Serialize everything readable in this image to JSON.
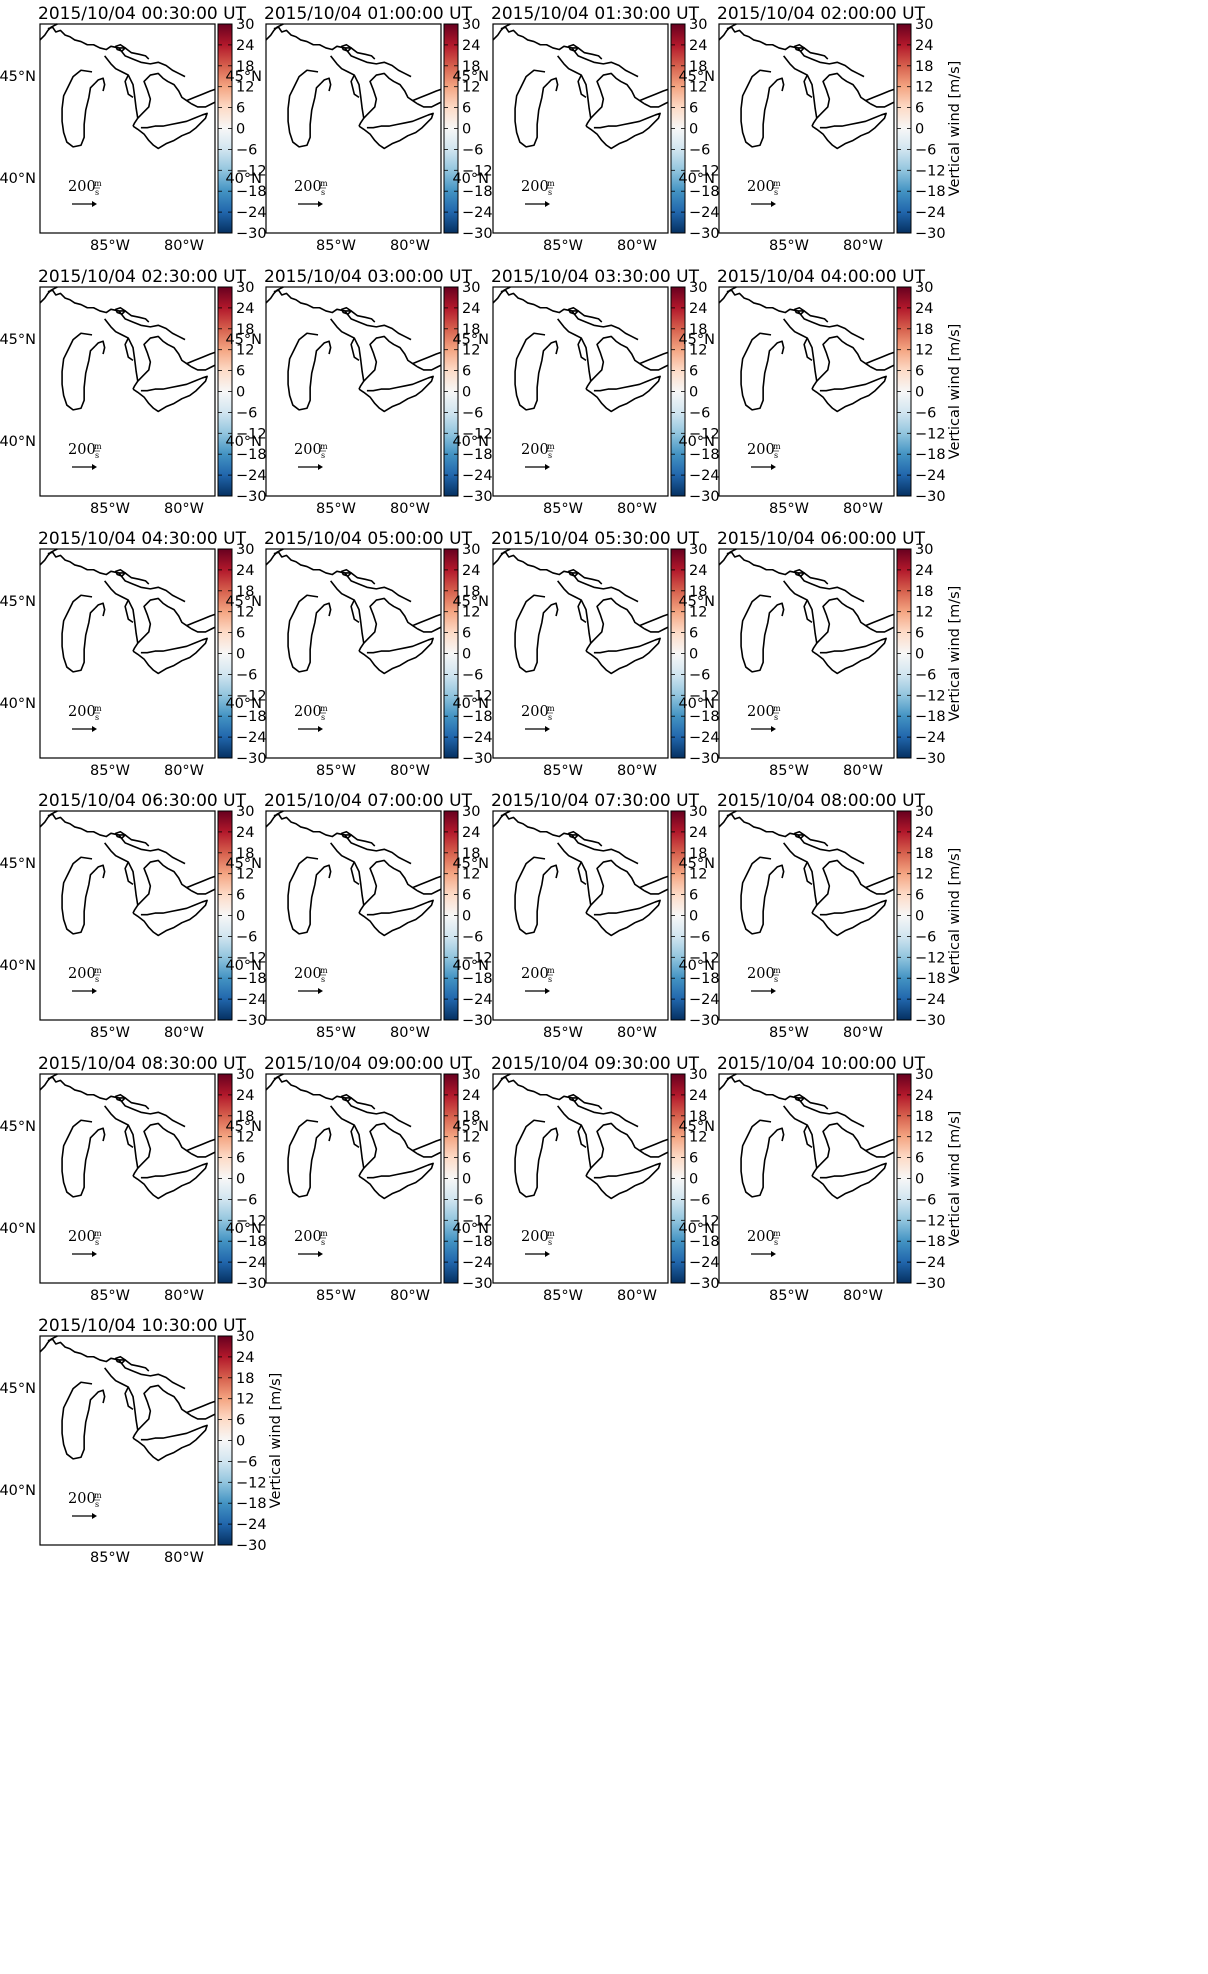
{
  "figure": {
    "panels": [
      {
        "title": "2015/10/04 00:30:00 UT"
      },
      {
        "title": "2015/10/04 01:00:00 UT"
      },
      {
        "title": "2015/10/04 01:30:00 UT"
      },
      {
        "title": "2015/10/04 02:00:00 UT"
      },
      {
        "title": "2015/10/04 02:30:00 UT"
      },
      {
        "title": "2015/10/04 03:00:00 UT"
      },
      {
        "title": "2015/10/04 03:30:00 UT"
      },
      {
        "title": "2015/10/04 04:00:00 UT"
      },
      {
        "title": "2015/10/04 04:30:00 UT"
      },
      {
        "title": "2015/10/04 05:00:00 UT"
      },
      {
        "title": "2015/10/04 05:30:00 UT"
      },
      {
        "title": "2015/10/04 06:00:00 UT"
      },
      {
        "title": "2015/10/04 06:30:00 UT"
      },
      {
        "title": "2015/10/04 07:00:00 UT"
      },
      {
        "title": "2015/10/04 07:30:00 UT"
      },
      {
        "title": "2015/10/04 08:00:00 UT"
      },
      {
        "title": "2015/10/04 08:30:00 UT"
      },
      {
        "title": "2015/10/04 09:00:00 UT"
      },
      {
        "title": "2015/10/04 09:30:00 UT"
      },
      {
        "title": "2015/10/04 10:00:00 UT"
      },
      {
        "title": "2015/10/04 10:30:00 UT"
      }
    ],
    "lat_ticks": [
      "45°N",
      "40°N"
    ],
    "lon_ticks": [
      "85°W",
      "80°W"
    ],
    "colorbar": {
      "label": "Vertical wind [m/s]",
      "ticks": [
        "30",
        "24",
        "18",
        "12",
        "6",
        "0",
        "−6",
        "−12",
        "−18",
        "−24",
        "−30"
      ],
      "min": -30,
      "max": 30,
      "colormap": "RdBu_r",
      "colors": [
        "#053061",
        "#2166ac",
        "#4393c3",
        "#92c5de",
        "#d1e5f0",
        "#f7f7f7",
        "#fddbc7",
        "#f4a582",
        "#d6604d",
        "#b2182b",
        "#67001f"
      ]
    },
    "reference_arrow": {
      "value": "200",
      "unit_numerator": "m",
      "unit_denominator": "s"
    }
  }
}
